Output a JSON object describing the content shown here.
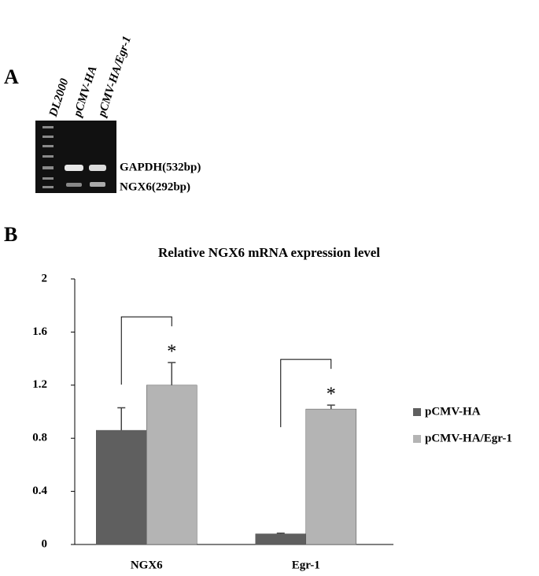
{
  "panel_a": {
    "label": "A",
    "lanes": [
      "DL2000",
      "pCMV-HA",
      "pCMV-HA/Egr-1"
    ],
    "bands": [
      "GAPDH(532bp)",
      "NGX6(292bp)"
    ]
  },
  "panel_b_label": "B",
  "chart_data": {
    "type": "bar",
    "title": "Relative NGX6 mRNA expression level",
    "categories": [
      "NGX6",
      "Egr-1"
    ],
    "series": [
      {
        "name": "pCMV-HA",
        "color": "#5f5f5f",
        "values": [
          0.86,
          0.08
        ],
        "errors": [
          0.17,
          0.005
        ]
      },
      {
        "name": "pCMV-HA/Egr-1",
        "color": "#b4b4b4",
        "values": [
          1.2,
          1.02
        ],
        "errors": [
          0.17,
          0.03
        ]
      }
    ],
    "annotations": [
      "*",
      "*"
    ],
    "ylim": [
      0,
      2
    ],
    "yticks": [
      0,
      0.4,
      0.8,
      1.2,
      1.6,
      2
    ],
    "grid": false,
    "legend": "right"
  }
}
